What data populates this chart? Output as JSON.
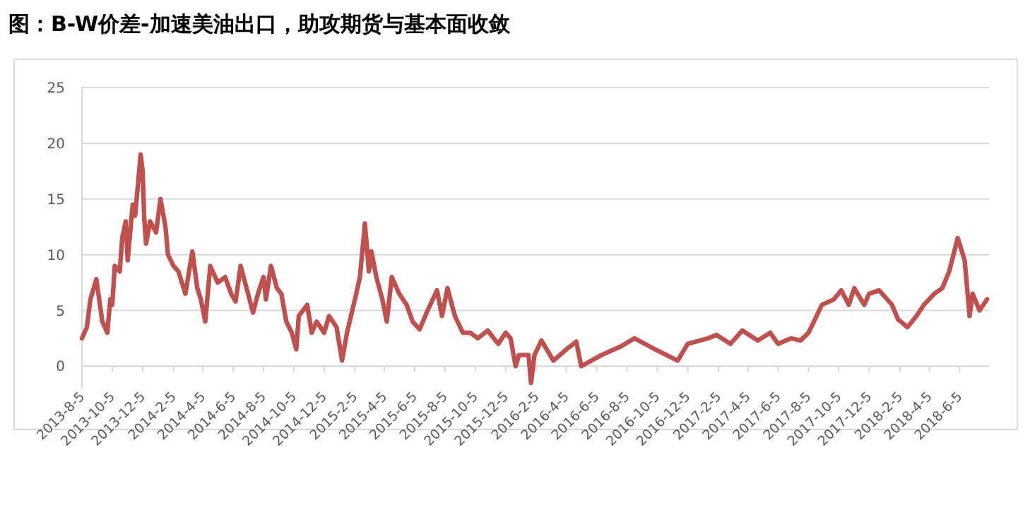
{
  "chart_data": {
    "type": "line",
    "title": "图：B-W价差-加速美油出口，助攻期货与基本面收敛",
    "series": [
      {
        "color": "#c0504d",
        "x": [
          "2013-08-05",
          "2013-08-15",
          "2013-08-22",
          "2013-09-03",
          "2013-09-15",
          "2013-09-25",
          "2013-10-01",
          "2013-10-05",
          "2013-10-10",
          "2013-10-20",
          "2013-10-25",
          "2013-11-01",
          "2013-11-05",
          "2013-11-15",
          "2013-11-20",
          "2013-12-01",
          "2013-12-05",
          "2013-12-08",
          "2013-12-12",
          "2013-12-20",
          "2014-01-01",
          "2014-01-10",
          "2014-01-20",
          "2014-01-25",
          "2014-02-05",
          "2014-02-15",
          "2014-03-01",
          "2014-03-15",
          "2014-03-25",
          "2014-04-01",
          "2014-04-10",
          "2014-04-20",
          "2014-05-05",
          "2014-05-20",
          "2014-06-01",
          "2014-06-10",
          "2014-06-20",
          "2014-07-05",
          "2014-07-15",
          "2014-07-25",
          "2014-08-05",
          "2014-08-10",
          "2014-08-20",
          "2014-09-01",
          "2014-09-10",
          "2014-09-20",
          "2014-10-01",
          "2014-10-10",
          "2014-10-15",
          "2014-11-01",
          "2014-11-10",
          "2014-11-20",
          "2014-12-05",
          "2014-12-15",
          "2014-12-30",
          "2015-01-10",
          "2015-01-20",
          "2015-02-05",
          "2015-02-15",
          "2015-02-25",
          "2015-03-05",
          "2015-03-10",
          "2015-03-20",
          "2015-04-01",
          "2015-04-10",
          "2015-04-20",
          "2015-05-05",
          "2015-05-20",
          "2015-06-01",
          "2015-06-15",
          "2015-07-01",
          "2015-07-20",
          "2015-07-30",
          "2015-08-10",
          "2015-08-25",
          "2015-09-10",
          "2015-09-25",
          "2015-10-10",
          "2015-10-30",
          "2015-11-20",
          "2015-12-05",
          "2015-12-15",
          "2015-12-25",
          "2016-01-01",
          "2016-01-20",
          "2016-01-25",
          "2016-02-01",
          "2016-02-15",
          "2016-03-10",
          "2016-04-05",
          "2016-04-25",
          "2016-05-05",
          "2016-06-15",
          "2016-07-25",
          "2016-08-20",
          "2016-10-01",
          "2016-11-15",
          "2016-12-05",
          "2017-01-15",
          "2017-02-01",
          "2017-03-01",
          "2017-03-25",
          "2017-04-25",
          "2017-05-20",
          "2017-06-05",
          "2017-07-01",
          "2017-07-20",
          "2017-08-05",
          "2017-09-01",
          "2017-09-25",
          "2017-10-10",
          "2017-10-25",
          "2017-11-05",
          "2017-11-25",
          "2017-12-05",
          "2017-12-25",
          "2018-01-20",
          "2018-02-01",
          "2018-02-20",
          "2018-03-10",
          "2018-03-25",
          "2018-04-15",
          "2018-05-01",
          "2018-05-15",
          "2018-06-01",
          "2018-06-15",
          "2018-06-25",
          "2018-07-01",
          "2018-07-15",
          "2018-07-30"
        ],
        "values": [
          2.5,
          3.5,
          6,
          7.8,
          4,
          3,
          6,
          5.5,
          9,
          8.5,
          11.5,
          13,
          9.5,
          14.5,
          13.5,
          19,
          17.5,
          13.5,
          11,
          13,
          12,
          15,
          12.5,
          10,
          9,
          8.5,
          6.5,
          10.3,
          7,
          6,
          4,
          9,
          7.5,
          8,
          6.5,
          5.8,
          9,
          6.5,
          4.8,
          6.5,
          8,
          6,
          9,
          7,
          6.5,
          4,
          3,
          1.5,
          4.5,
          5.5,
          3,
          4,
          3,
          4.5,
          3.5,
          0.5,
          3,
          6,
          8,
          12.8,
          8.5,
          10.3,
          8,
          6,
          4,
          8,
          6.5,
          5.5,
          4,
          3.3,
          5,
          6.8,
          4.5,
          7,
          4.5,
          3,
          3,
          2.5,
          3.2,
          2,
          3,
          2.5,
          0,
          1,
          1,
          -1.5,
          1,
          2.3,
          0.5,
          1.5,
          2.2,
          0,
          1,
          1.8,
          2.5,
          1.5,
          0.5,
          2,
          2.5,
          2.8,
          2,
          3.2,
          2.3,
          3,
          2,
          2.5,
          2.3,
          3,
          5.5,
          6,
          6.8,
          5.5,
          7,
          5.5,
          6.5,
          6.8,
          5.5,
          4.2,
          3.5,
          4.5,
          5.5,
          6.5,
          7,
          8.5,
          11.5,
          9.5,
          4.5,
          6.5,
          5,
          6
        ]
      }
    ],
    "xlim": [
      "2013-08-05",
      "2018-08-03"
    ],
    "xticks": [
      {
        "value": "2013-08-05",
        "label": "2013-8-5"
      },
      {
        "value": "2013-10-05",
        "label": "2013-10-5"
      },
      {
        "value": "2013-12-05",
        "label": "2013-12-5"
      },
      {
        "value": "2014-02-05",
        "label": "2014-2-5"
      },
      {
        "value": "2014-04-05",
        "label": "2014-4-5"
      },
      {
        "value": "2014-06-05",
        "label": "2014-6-5"
      },
      {
        "value": "2014-08-05",
        "label": "2014-8-5"
      },
      {
        "value": "2014-10-05",
        "label": "2014-10-5"
      },
      {
        "value": "2014-12-05",
        "label": "2014-12-5"
      },
      {
        "value": "2015-02-05",
        "label": "2015-2-5"
      },
      {
        "value": "2015-04-05",
        "label": "2015-4-5"
      },
      {
        "value": "2015-06-05",
        "label": "2015-6-5"
      },
      {
        "value": "2015-08-05",
        "label": "2015-8-5"
      },
      {
        "value": "2015-10-05",
        "label": "2015-10-5"
      },
      {
        "value": "2015-12-05",
        "label": "2015-12-5"
      },
      {
        "value": "2016-02-05",
        "label": "2016-2-5"
      },
      {
        "value": "2016-04-05",
        "label": "2016-4-5"
      },
      {
        "value": "2016-06-05",
        "label": "2016-6-5"
      },
      {
        "value": "2016-08-05",
        "label": "2016-8-5"
      },
      {
        "value": "2016-10-05",
        "label": "2016-10-5"
      },
      {
        "value": "2016-12-05",
        "label": "2016-12-5"
      },
      {
        "value": "2017-02-05",
        "label": "2017-2-5"
      },
      {
        "value": "2017-04-05",
        "label": "2017-4-5"
      },
      {
        "value": "2017-06-05",
        "label": "2017-6-5"
      },
      {
        "value": "2017-08-05",
        "label": "2017-8-5"
      },
      {
        "value": "2017-10-05",
        "label": "2017-10-5"
      },
      {
        "value": "2017-12-05",
        "label": "2017-12-5"
      },
      {
        "value": "2018-02-05",
        "label": "2018-2-5"
      },
      {
        "value": "2018-04-05",
        "label": "2018-4-5"
      },
      {
        "value": "2018-06-05",
        "label": "2018-6-5"
      }
    ],
    "ylim": [
      -2,
      25
    ],
    "yticks": [
      0,
      5,
      10,
      15,
      20,
      25
    ],
    "grid": "y",
    "marker": "none",
    "line_style": "solid"
  }
}
